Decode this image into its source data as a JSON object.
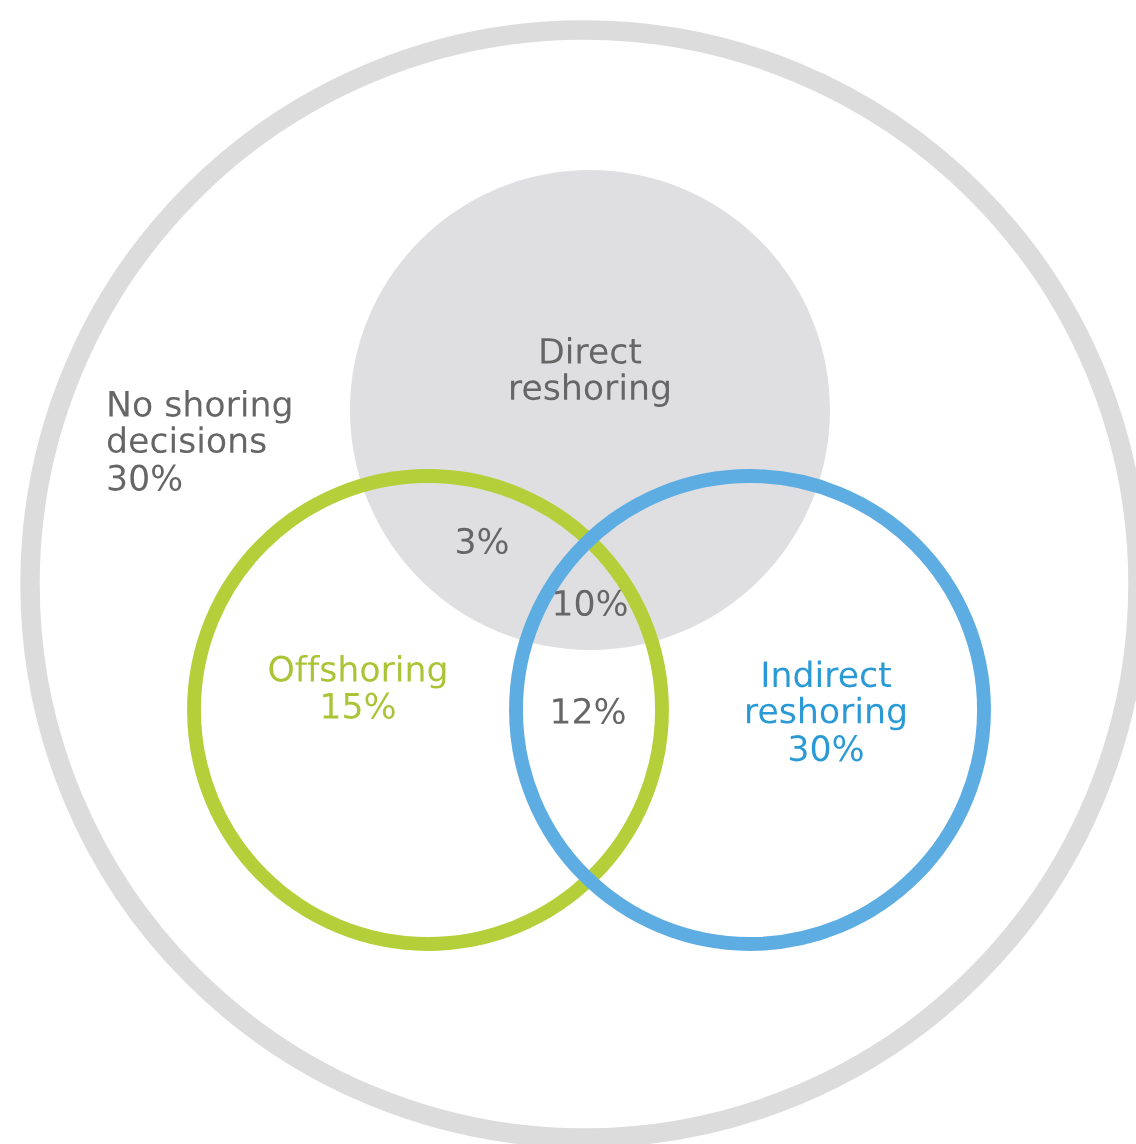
{
  "chart_data": {
    "type": "other",
    "categories": [
      "No shoring\ndecisions",
      "Direct\nreshoring",
      "Offshoring",
      "Indirect\nreshoring"
    ],
    "values": [
      30,
      null,
      15,
      30
    ],
    "value_labels": [
      "30%",
      null,
      "15%",
      "30%"
    ],
    "colors": [
      "#dcdcdc",
      "#dfdfe1",
      "#b5cf3a",
      "#5dade2"
    ],
    "annotations": [
      "3%",
      "10%",
      "12%"
    ]
  }
}
